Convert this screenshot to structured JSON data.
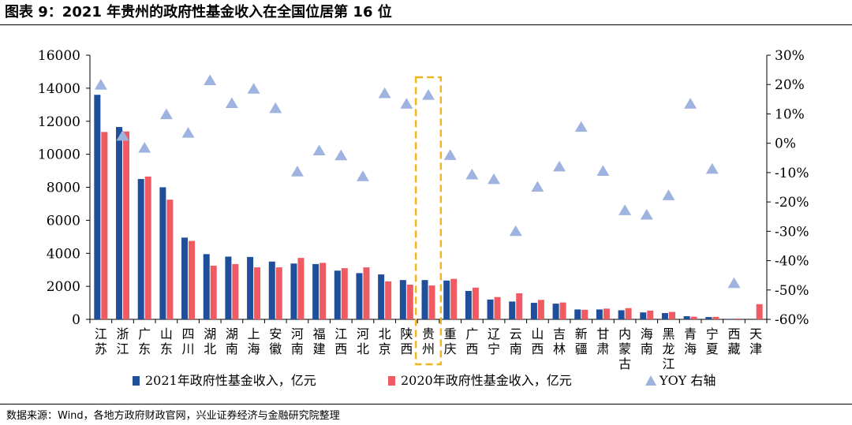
{
  "title": "图表 9：2021 年贵州的政府性基金收入在全国位居第 16 位",
  "source": "数据来源：Wind，各地方政府财政官网，兴业证券经济与金融研究院整理",
  "colors": {
    "bar2021": "#1f4e9a",
    "bar2020": "#ef5b63",
    "yoy": "#9fb3e0",
    "highlight": "#f2b51e"
  },
  "chart_data": {
    "type": "bar",
    "title": "2021 年贵州的政府性基金收入在全国位居第 16 位",
    "categories": [
      "江苏",
      "浙江",
      "广东",
      "山东",
      "四川",
      "湖北",
      "湖南",
      "上海",
      "安徽",
      "河南",
      "福建",
      "江西",
      "河北",
      "北京",
      "陕西",
      "贵州",
      "重庆",
      "广西",
      "辽宁",
      "云南",
      "山西",
      "吉林",
      "新疆",
      "甘肃",
      "内蒙古",
      "海南",
      "黑龙江",
      "青海",
      "宁夏",
      "西藏",
      "天津"
    ],
    "category_labels": [
      "江苏",
      "浙江",
      "广东",
      "山东",
      "四川",
      "湖北",
      "湖南",
      "上海",
      "安徽",
      "河南",
      "福建",
      "江西",
      "河北",
      "北京",
      "陕西",
      "贵州",
      "重庆",
      "广西",
      "辽宁",
      "云南",
      "山西",
      "吉林",
      "新疆",
      "甘肃",
      "内蒙古",
      "海南",
      "黑龙江",
      "青海",
      "宁夏",
      "西藏",
      "天津"
    ],
    "series": [
      {
        "name": "2021年政府性基金收入，亿元",
        "axis": "left",
        "kind": "bar",
        "values": [
          13600,
          11650,
          8500,
          8000,
          4950,
          3950,
          3800,
          3780,
          3500,
          3380,
          3350,
          2950,
          2800,
          2720,
          2380,
          2380,
          2350,
          1720,
          1200,
          1080,
          1000,
          950,
          600,
          600,
          550,
          420,
          380,
          190,
          140,
          30,
          0
        ]
      },
      {
        "name": "2020年政府性基金收入，亿元",
        "axis": "left",
        "kind": "bar",
        "values": [
          11350,
          11380,
          8650,
          7250,
          4750,
          3250,
          3350,
          3150,
          3150,
          3720,
          3420,
          3100,
          3150,
          2300,
          2100,
          2050,
          2450,
          1920,
          1350,
          1580,
          1180,
          1020,
          580,
          650,
          680,
          530,
          450,
          160,
          150,
          50,
          920
        ]
      },
      {
        "name": "YOY 右轴",
        "axis": "right",
        "kind": "scatter",
        "unit": "%",
        "values": [
          19.8,
          2.4,
          -1.7,
          9.7,
          3.4,
          21.3,
          13.5,
          18.4,
          11.8,
          -9.8,
          -2.6,
          -4.3,
          -11.4,
          16.9,
          13.3,
          16.3,
          -4.2,
          -10.8,
          -12.4,
          -30.1,
          -15.0,
          -8.1,
          5.4,
          -9.6,
          -23.0,
          -24.5,
          -17.9,
          13.3,
          -8.9,
          -47.8,
          null
        ]
      }
    ],
    "y_left": {
      "min": 0,
      "max": 16000,
      "step": 2000,
      "tick_labels": [
        "0",
        "2000",
        "4000",
        "6000",
        "8000",
        "10000",
        "12000",
        "14000",
        "16000"
      ]
    },
    "y_right": {
      "min": -60,
      "max": 30,
      "step": 10,
      "unit": "%",
      "tick_labels": [
        "-60%",
        "-50%",
        "-40%",
        "-30%",
        "-20%",
        "-10%",
        "0%",
        "10%",
        "20%",
        "30%"
      ]
    },
    "highlight_category": "贵州",
    "legend": {
      "position": "bottom",
      "entries": [
        "2021年政府性基金收入，亿元",
        "2020年政府性基金收入，亿元",
        "YOY 右轴"
      ]
    },
    "grid": false
  }
}
